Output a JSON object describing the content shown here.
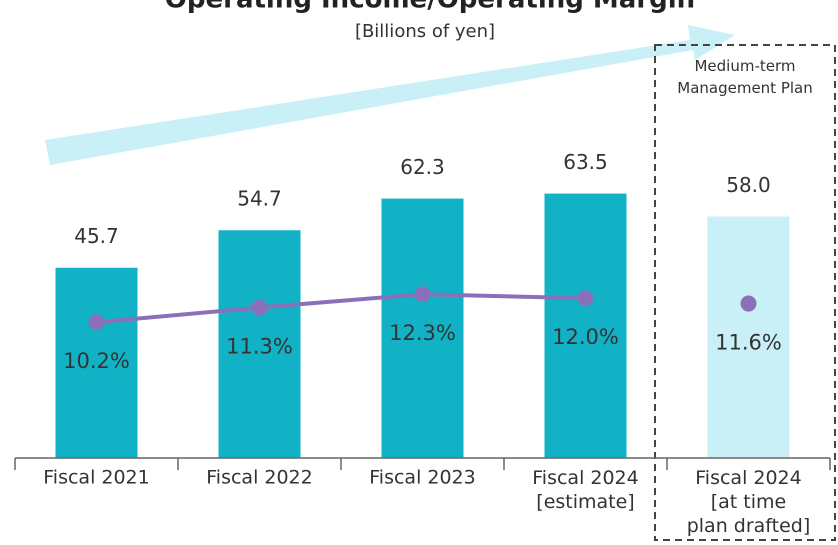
{
  "chart_data": {
    "type": "bar",
    "title": "Operating Income/Operating Margin",
    "subtitle": "[Billions of yen]",
    "annotation": "Medium-term\nManagement Plan",
    "categories": [
      "Fiscal 2021",
      "Fiscal 2022",
      "Fiscal 2023",
      "Fiscal 2024\n[estimate]",
      "Fiscal 2024\n[at time\nplan drafted]"
    ],
    "ylim": [
      0,
      110
    ],
    "y2lim": [
      0,
      34.4
    ],
    "series": [
      {
        "type": "bar",
        "colors": [
          "#12b2c6",
          "#12b2c6",
          "#12b2c6",
          "#12b2c6",
          "#c8f0f6"
        ],
        "values": [
          45.7,
          54.7,
          62.3,
          63.5,
          58.0
        ],
        "value_labels": [
          "45.7",
          "54.7",
          "62.3",
          "63.5",
          "58.0"
        ]
      },
      {
        "type": "line",
        "axis": "y2",
        "color": "#8a70b8",
        "values": [
          10.2,
          11.3,
          12.3,
          12.0,
          null
        ],
        "value_labels": [
          "10.2%",
          "11.3%",
          "12.3%",
          "12.0%",
          null
        ]
      },
      {
        "type": "scatter",
        "axis": "y2",
        "color": "#8a70b8",
        "values": [
          null,
          null,
          null,
          null,
          11.6
        ],
        "value_labels": [
          null,
          null,
          null,
          null,
          "11.6%"
        ]
      }
    ]
  }
}
